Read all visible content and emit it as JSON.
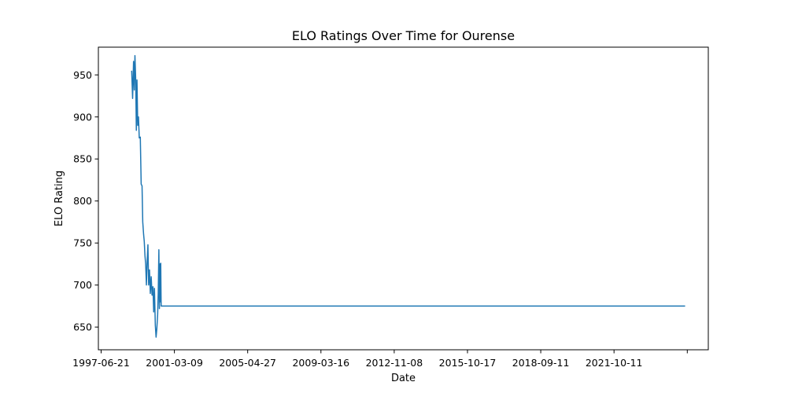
{
  "chart_data": {
    "type": "line",
    "title": "ELO Ratings Over Time for Ourense",
    "xlabel": "Date",
    "ylabel": "ELO Rating",
    "x_tick_labels": [
      "1997-06-21",
      "2001-03-09",
      "2005-04-27",
      "2009-03-16",
      "2012-11-08",
      "2015-10-17",
      "2018-09-11",
      "2021-10-11",
      ""
    ],
    "y_ticks": [
      650,
      700,
      750,
      800,
      850,
      900,
      950
    ],
    "xlim": [
      "1996-06-11",
      "2025-02-14"
    ],
    "ylim": [
      623,
      983
    ],
    "grid": false,
    "legend": "none",
    "series": [
      {
        "color": "#1f77b4",
        "points": [
          [
            "1998-01-04",
            955
          ],
          [
            "1998-01-20",
            922
          ],
          [
            "1998-02-05",
            966
          ],
          [
            "1998-02-18",
            932
          ],
          [
            "1998-03-01",
            973
          ],
          [
            "1998-03-14",
            945
          ],
          [
            "1998-03-25",
            884
          ],
          [
            "1998-04-05",
            944
          ],
          [
            "1998-04-18",
            890
          ],
          [
            "1998-05-01",
            900
          ],
          [
            "1998-05-14",
            875
          ],
          [
            "1998-06-01",
            876
          ],
          [
            "1998-06-16",
            820
          ],
          [
            "1998-07-01",
            818
          ],
          [
            "1998-07-13",
            775
          ],
          [
            "1998-07-28",
            760
          ],
          [
            "1998-08-08",
            752
          ],
          [
            "1998-08-20",
            735
          ],
          [
            "1998-09-01",
            725
          ],
          [
            "1998-09-14",
            700
          ],
          [
            "1998-09-26",
            727
          ],
          [
            "1998-10-10",
            748
          ],
          [
            "1998-10-22",
            700
          ],
          [
            "1998-11-06",
            718
          ],
          [
            "1998-11-20",
            690
          ],
          [
            "1998-12-05",
            710
          ],
          [
            "1998-12-20",
            688
          ],
          [
            "1999-01-04",
            698
          ],
          [
            "1999-01-17",
            668
          ],
          [
            "1999-01-30",
            696
          ],
          [
            "1999-02-14",
            652
          ],
          [
            "1999-02-27",
            638
          ],
          [
            "1999-03-12",
            648
          ],
          [
            "1999-03-26",
            665
          ],
          [
            "1999-04-05",
            690
          ],
          [
            "1999-04-16",
            742
          ],
          [
            "1999-04-25",
            672
          ],
          [
            "1999-05-04",
            725
          ],
          [
            "1999-05-11",
            680
          ],
          [
            "1999-05-18",
            726
          ],
          [
            "1999-05-25",
            675
          ],
          [
            "2024-01-13",
            675
          ]
        ]
      }
    ]
  }
}
